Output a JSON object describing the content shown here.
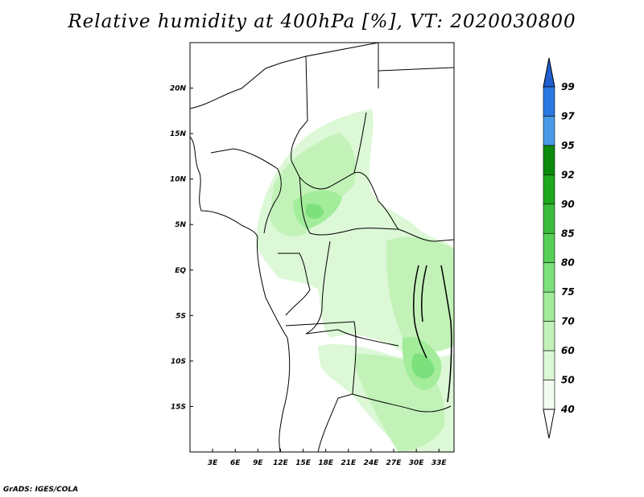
{
  "title": "Relative humidity at 400hPa [%], VT: 2020030800",
  "footer": "GrADS: IGES/COLA",
  "map": {
    "lon_range": [
      0,
      35
    ],
    "lat_range": [
      -20,
      25
    ],
    "x_ticks": [
      "3E",
      "6E",
      "9E",
      "12E",
      "15E",
      "18E",
      "21E",
      "24E",
      "27E",
      "30E",
      "33E"
    ],
    "y_ticks": [
      "20N",
      "15N",
      "10N",
      "5N",
      "EQ",
      "5S",
      "10S",
      "15S"
    ]
  },
  "colorbar": {
    "levels": [
      "99",
      "97",
      "95",
      "92",
      "90",
      "85",
      "80",
      "75",
      "70",
      "60",
      "50",
      "40"
    ],
    "colors": [
      "#1f5fd0",
      "#2a78e0",
      "#4a9ae8",
      "#0c8a0c",
      "#1ea81e",
      "#3cbc3c",
      "#56d056",
      "#7ce07c",
      "#a2ec9a",
      "#c2f2b8",
      "#dcf8d6",
      "#f2fdf0"
    ]
  }
}
